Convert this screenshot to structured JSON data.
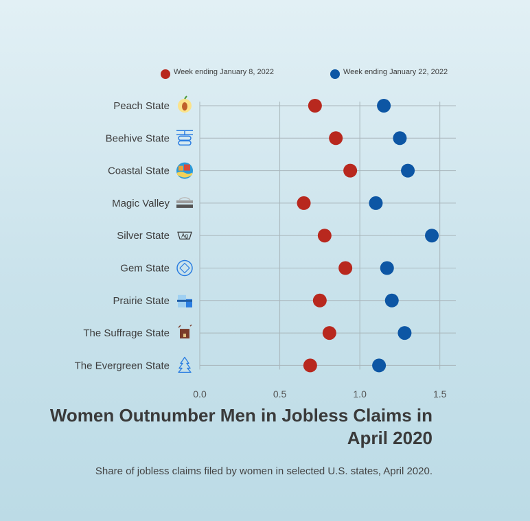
{
  "chart_data": {
    "type": "scatter",
    "title": "Women Outnumber Men in Jobless Claims in April 2020",
    "subtitle": "Share of jobless claims filed by women in selected U.S. states, April 2020.",
    "categories": [
      "Peach State",
      "Beehive State",
      "Coastal State",
      "Magic Valley",
      "Silver State",
      "Gem State",
      "Prairie State",
      "The Suffrage State",
      "The Evergreen State"
    ],
    "category_icons": [
      "peach-icon",
      "beehive-icon",
      "coastal-icon",
      "magic-valley-icon",
      "silver-ag-icon",
      "gem-icon",
      "prairie-icon",
      "suffrage-icon",
      "evergreen-tree-icon"
    ],
    "series": [
      {
        "name": "Week ending January 8, 2022",
        "color": "#b8281e",
        "values": [
          0.72,
          0.85,
          0.94,
          0.65,
          0.78,
          0.91,
          0.75,
          0.81,
          0.69
        ]
      },
      {
        "name": "Week ending January 22, 2022",
        "color": "#0d56a4",
        "values": [
          1.15,
          1.25,
          1.3,
          1.1,
          1.45,
          1.17,
          1.2,
          1.28,
          1.12
        ]
      }
    ],
    "xlim": [
      0,
      1.6
    ],
    "xticks": [
      "0.0",
      "0.5",
      "1.0",
      "1.5"
    ],
    "xtick_values": [
      0,
      0.5,
      1.0,
      1.5
    ],
    "grid": true,
    "legend_position": "top"
  }
}
